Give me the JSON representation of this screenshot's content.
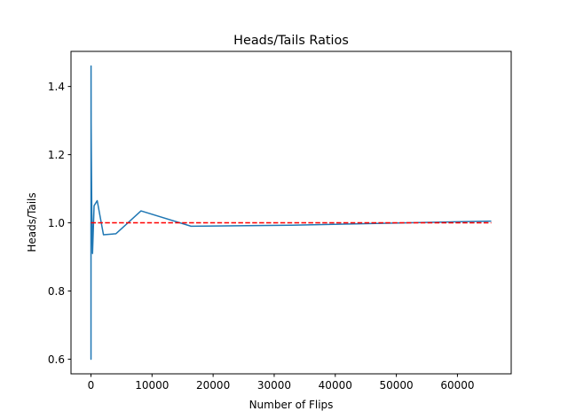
{
  "chart_data": {
    "type": "line",
    "title": "Heads/Tails Ratios",
    "xlabel": "Number of Flips",
    "ylabel": "Heads/Tails",
    "xlim": [
      -3267,
      68803
    ],
    "ylim": [
      0.557,
      1.503
    ],
    "xticks": [
      0,
      10000,
      20000,
      30000,
      40000,
      50000,
      60000
    ],
    "xtick_labels": [
      "0",
      "10000",
      "20000",
      "30000",
      "40000",
      "50000",
      "60000"
    ],
    "yticks": [
      0.6,
      0.8,
      1.0,
      1.2,
      1.4
    ],
    "ytick_labels": [
      "0.6",
      "0.8",
      "1.0",
      "1.2",
      "1.4"
    ],
    "grid": false,
    "series": [
      {
        "color": "#1f77b4",
        "style": "solid",
        "x": [
          4,
          8,
          16,
          32,
          64,
          128,
          256,
          512,
          1024,
          2048,
          4096,
          8192,
          16384,
          32768,
          65536
        ],
        "y": [
          1.0,
          0.6,
          1.46,
          1.29,
          1.2,
          1.05,
          0.91,
          1.05,
          1.065,
          0.965,
          0.968,
          1.035,
          0.99,
          0.993,
          1.005
        ]
      },
      {
        "color": "#ff0000",
        "style": "dashed",
        "x": [
          4,
          65536
        ],
        "y": [
          1.0,
          1.0
        ]
      }
    ]
  }
}
